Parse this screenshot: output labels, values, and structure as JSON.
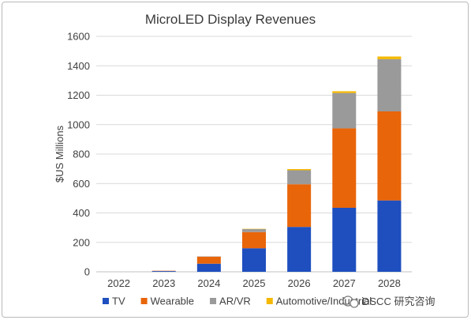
{
  "chart_data": {
    "type": "bar",
    "stacked": true,
    "title": "MicroLED Display Revenues",
    "xlabel": "",
    "ylabel": "$US Millions",
    "ylim": [
      0,
      1600
    ],
    "yticks": [
      0,
      200,
      400,
      600,
      800,
      1000,
      1200,
      1400,
      1600
    ],
    "grid": true,
    "legend_position": "bottom",
    "categories": [
      "2022",
      "2023",
      "2024",
      "2025",
      "2026",
      "2027",
      "2028"
    ],
    "series": [
      {
        "name": "TV",
        "color": "#1f4fbf",
        "values": [
          0,
          5,
          55,
          160,
          305,
          435,
          485
        ]
      },
      {
        "name": "Wearable",
        "color": "#e8650a",
        "values": [
          0,
          2,
          48,
          110,
          290,
          540,
          605
        ]
      },
      {
        "name": "AR/VR",
        "color": "#9a9a9a",
        "values": [
          0,
          0,
          2,
          20,
          95,
          240,
          355
        ]
      },
      {
        "name": "Automotive/Industrial",
        "color": "#f5b800",
        "values": [
          0,
          0,
          0,
          2,
          8,
          12,
          18
        ]
      }
    ]
  },
  "watermark": {
    "text": "DSCC 研究咨询",
    "icon": "wechat-icon"
  }
}
